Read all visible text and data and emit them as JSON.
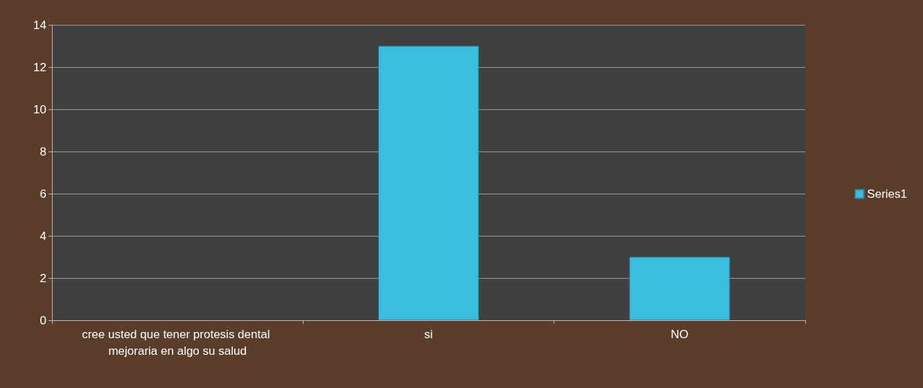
{
  "chart_data": {
    "type": "bar",
    "categories": [
      "cree usted que tener protesis dental mejoraria en algo su salud",
      "si",
      "NO"
    ],
    "series": [
      {
        "name": "Series1",
        "color": "#3bbde0",
        "values": [
          null,
          13,
          3
        ]
      }
    ],
    "ylim": [
      0,
      14
    ],
    "yticks": [
      0,
      2,
      4,
      6,
      8,
      10,
      12,
      14
    ],
    "grid": "y",
    "legend": "right"
  }
}
